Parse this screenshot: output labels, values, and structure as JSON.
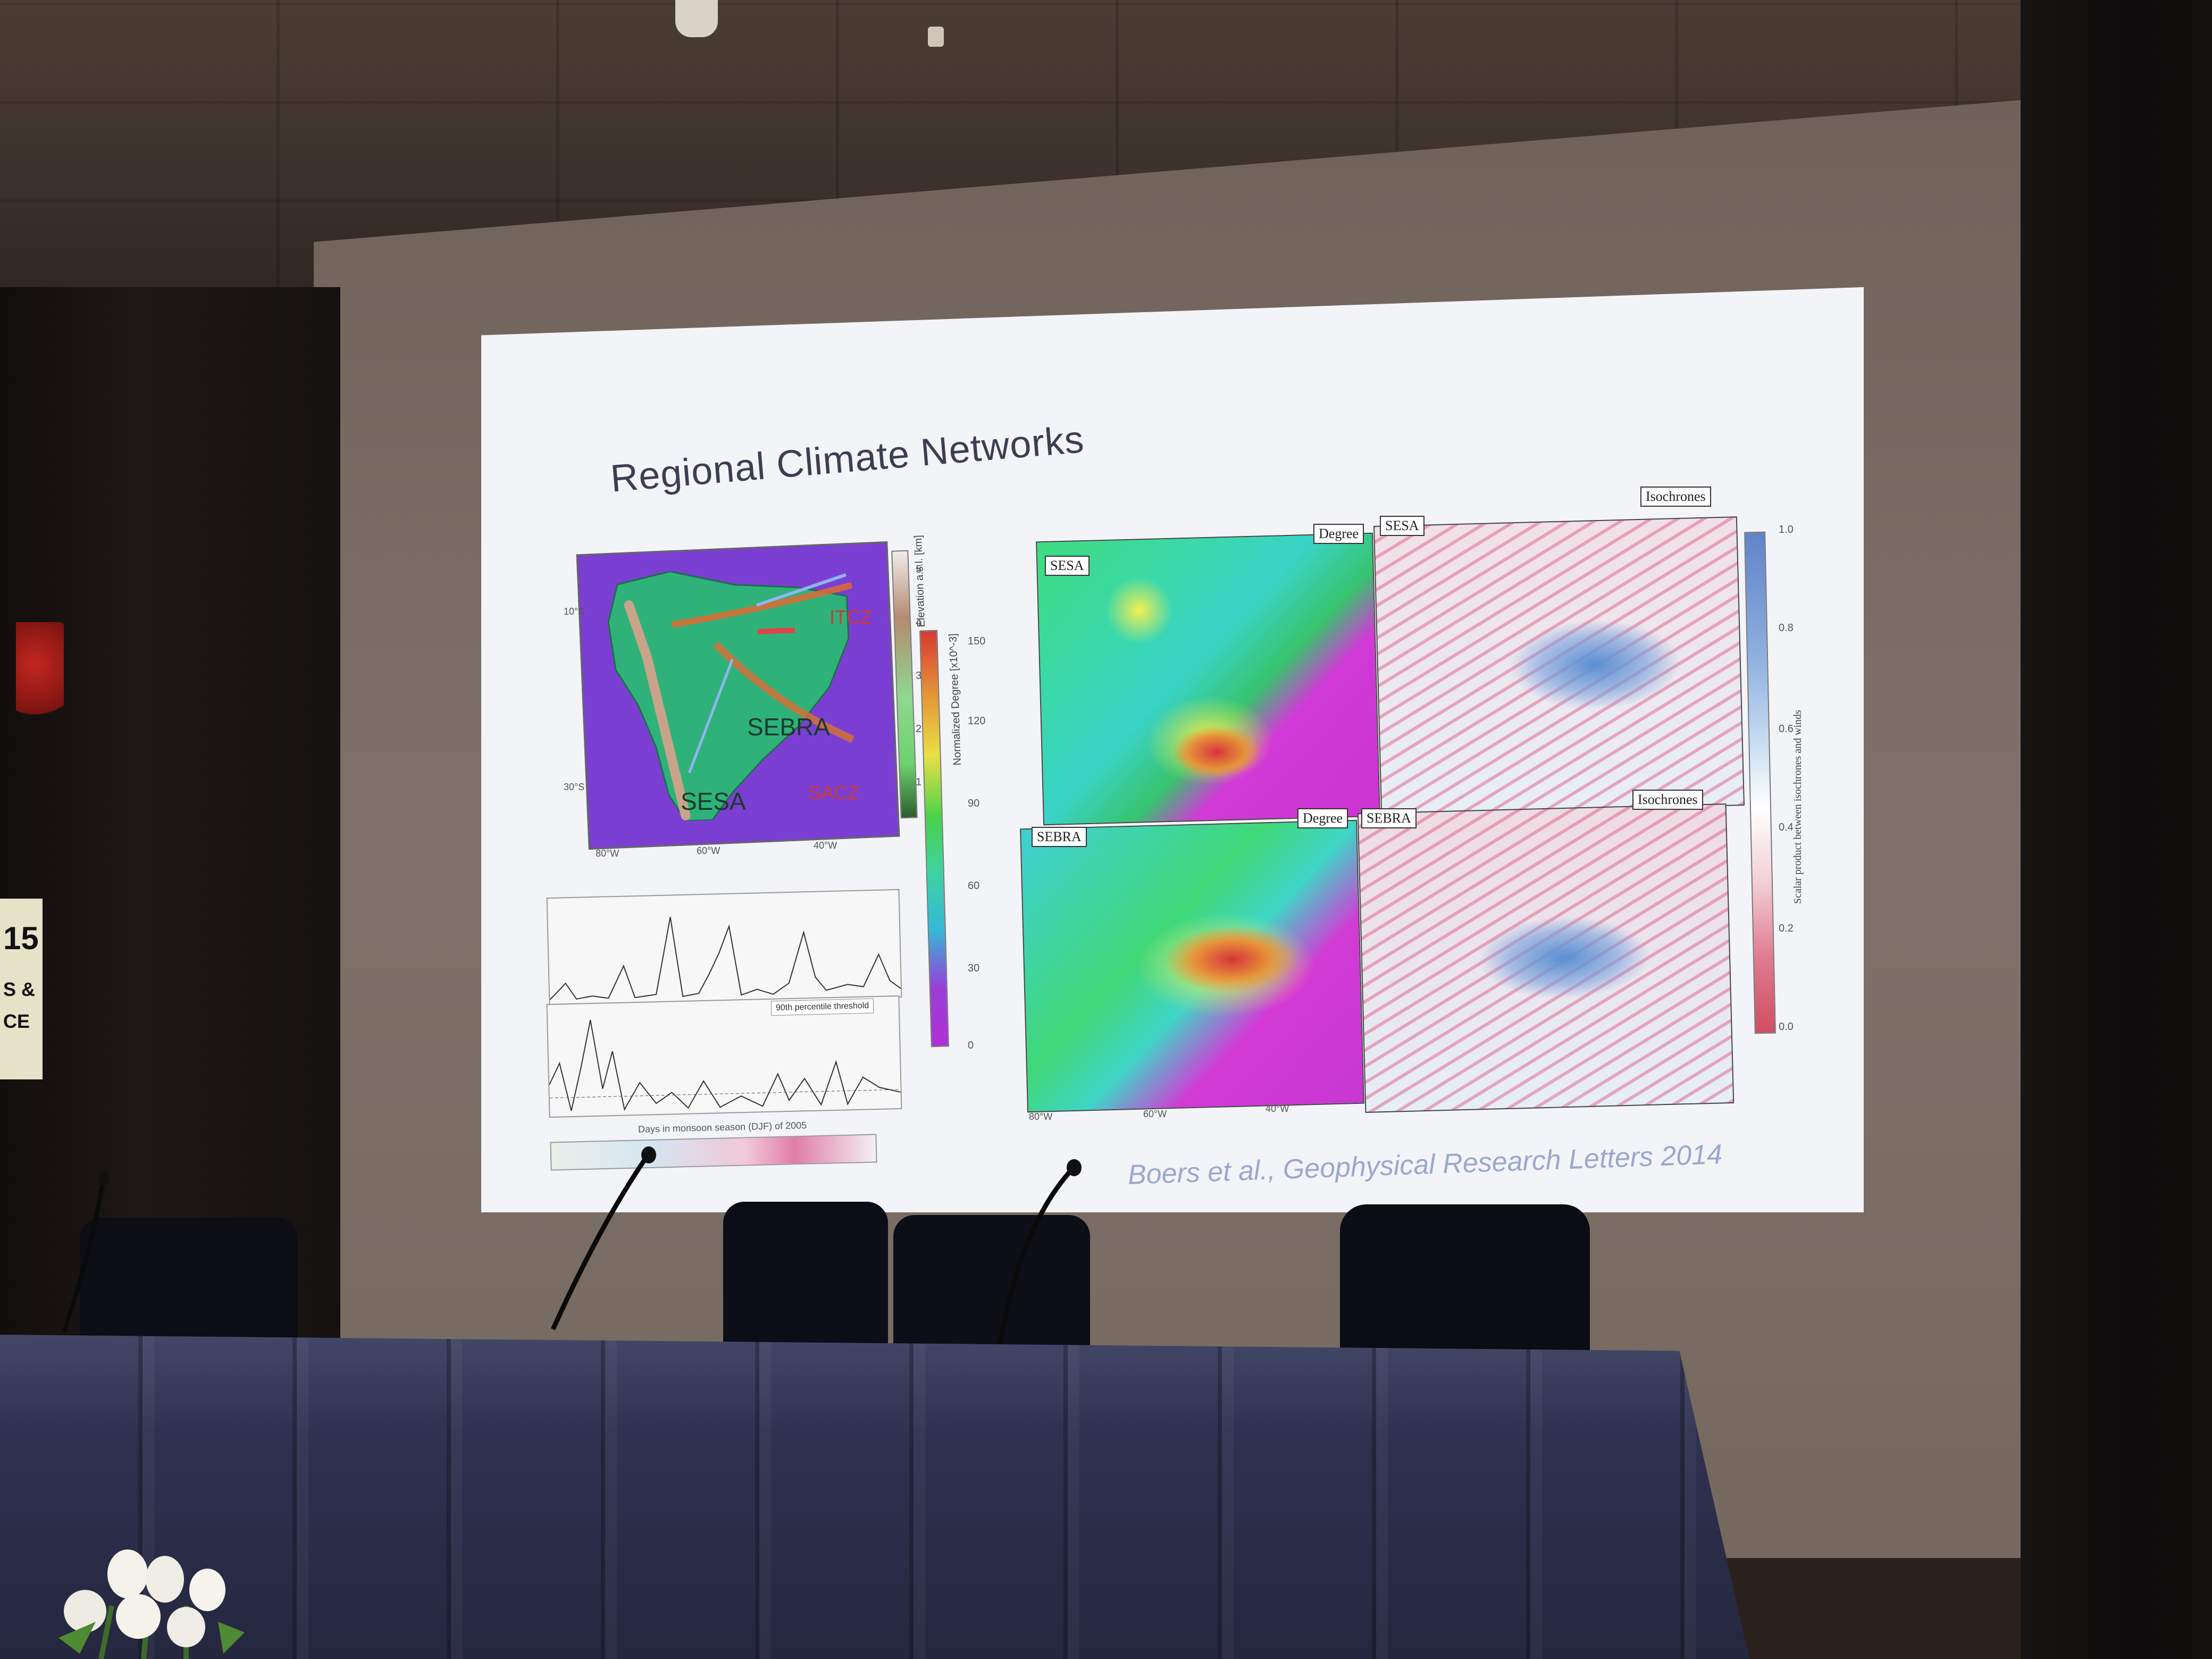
{
  "slide": {
    "title": "Regional Climate Networks",
    "citation": "Boers et al., Geophysical Research Letters 2014"
  },
  "left_map": {
    "labels": {
      "sebra": "SEBRA",
      "sesa": "SESA",
      "sacz": "SACZ",
      "itcz": "ITCZ"
    },
    "lon_ticks": [
      "80°W",
      "60°W",
      "40°W"
    ],
    "lat_ticks": [
      "10°S",
      "30°S"
    ]
  },
  "elevation_bar": {
    "label": "Elevation a.s.l. [km]",
    "ticks": [
      "5",
      "4",
      "3",
      "2",
      "1"
    ]
  },
  "degree_bar": {
    "label": "Normalized Degree [x10^-3]",
    "ticks": [
      "150",
      "120",
      "90",
      "60",
      "30",
      "0"
    ]
  },
  "time_series": {
    "xlabel": "Days in monsoon season (DJF) of 2005",
    "annotation": "90th percentile threshold"
  },
  "right_panels": {
    "sesa_degree_tag": "SESA",
    "sesa_degree_right_tag": "Degree",
    "sesa_iso_tag": "SESA",
    "sesa_iso_right_tag": "Isochrones",
    "sebra_degree_tag": "SEBRA",
    "sebra_degree_right_tag": "Degree",
    "sebra_iso_tag": "SEBRA",
    "sebra_iso_right_tag": "Isochrones",
    "lon_ticks": [
      "80°W",
      "60°W",
      "40°W"
    ]
  },
  "scalar_bar": {
    "label": "Scalar product between isochrones and winds",
    "ticks": [
      "1.0",
      "0.8",
      "0.6",
      "0.4",
      "0.2",
      "0.0"
    ]
  },
  "banner": {
    "line1": "15",
    "line2": "S &",
    "line3": "CE"
  },
  "colors": {
    "slide_bg": "#f3f4f7",
    "title_color": "#3a3f52",
    "citation_color": "#9aa8cf",
    "table_cloth": "#2f3250",
    "map_ocean": "#7a3fd2"
  }
}
